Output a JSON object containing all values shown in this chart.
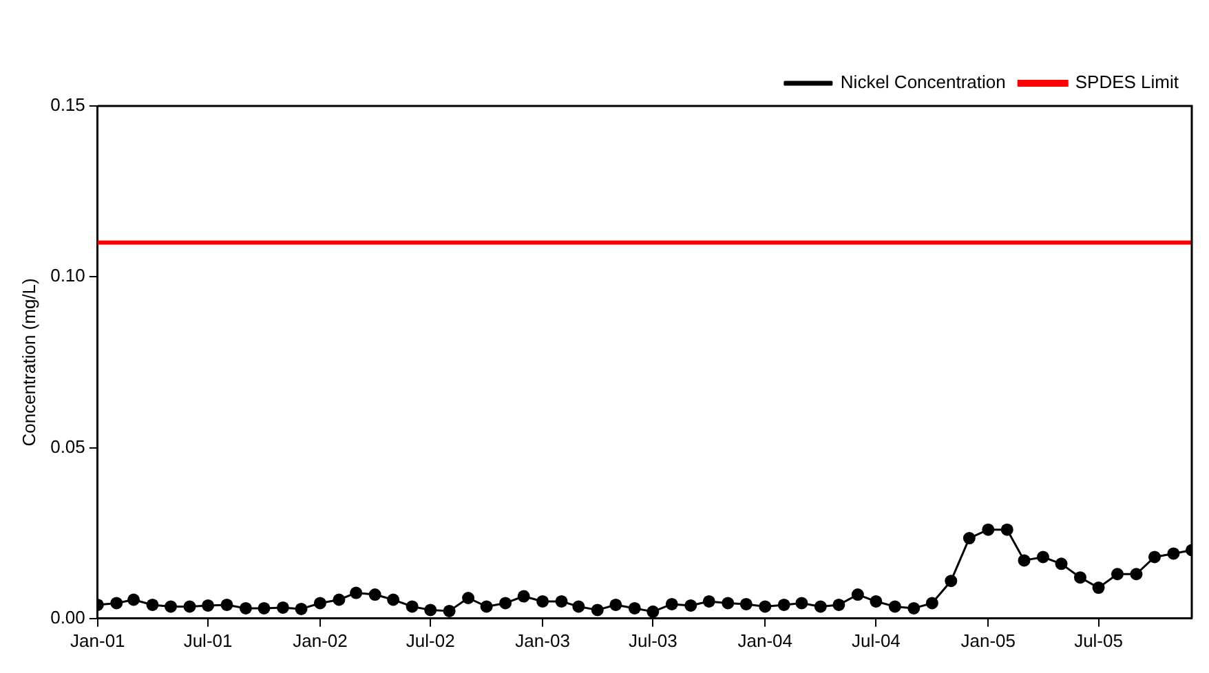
{
  "chart_data": {
    "type": "line",
    "ylabel": "Concentration (mg/L)",
    "x": [
      "2001-01",
      "2001-02",
      "2001-03",
      "2001-04",
      "2001-05",
      "2001-06",
      "2001-07",
      "2001-08",
      "2001-09",
      "2001-10",
      "2001-11",
      "2001-12",
      "2002-01",
      "2002-02",
      "2002-03",
      "2002-04",
      "2002-05",
      "2002-06",
      "2002-07",
      "2002-08",
      "2002-09",
      "2002-10",
      "2002-11",
      "2002-12",
      "2003-01",
      "2003-02",
      "2003-03",
      "2003-04",
      "2003-05",
      "2003-06",
      "2003-07",
      "2003-08",
      "2003-09",
      "2003-10",
      "2003-11",
      "2003-12",
      "2004-01",
      "2004-02",
      "2004-03",
      "2004-04",
      "2004-05",
      "2004-06",
      "2004-07",
      "2004-08",
      "2004-09",
      "2004-10",
      "2004-11",
      "2004-12",
      "2005-01",
      "2005-02",
      "2005-03",
      "2005-04",
      "2005-05",
      "2005-06",
      "2005-07",
      "2005-08",
      "2005-09",
      "2005-10",
      "2005-11",
      "2005-12"
    ],
    "series": [
      {
        "name": "Nickel Concentration",
        "color": "#000000",
        "values": [
          0.004,
          0.0045,
          0.0055,
          0.004,
          0.0035,
          0.0035,
          0.0038,
          0.004,
          0.003,
          0.003,
          0.0032,
          0.0028,
          0.0045,
          0.0055,
          0.0075,
          0.007,
          0.0055,
          0.0035,
          0.0025,
          0.0022,
          0.006,
          0.0035,
          0.0045,
          0.0065,
          0.005,
          0.005,
          0.0035,
          0.0025,
          0.004,
          0.003,
          0.002,
          0.0042,
          0.0038,
          0.005,
          0.0045,
          0.0042,
          0.0035,
          0.004,
          0.0045,
          0.0035,
          0.004,
          0.007,
          0.005,
          0.0035,
          0.003,
          0.0045,
          0.011,
          0.0235,
          0.026,
          0.026,
          0.017,
          0.018,
          0.016,
          0.012,
          0.009,
          0.013,
          0.013,
          0.018,
          0.019,
          0.02
        ]
      }
    ],
    "xlim": [
      "2001-01",
      "2005-12"
    ],
    "xticks": [
      {
        "value": "2001-01",
        "label": "Jan-01"
      },
      {
        "value": "2001-07",
        "label": "Jul-01"
      },
      {
        "value": "2002-01",
        "label": "Jan-02"
      },
      {
        "value": "2002-07",
        "label": "Jul-02"
      },
      {
        "value": "2003-01",
        "label": "Jan-03"
      },
      {
        "value": "2003-07",
        "label": "Jul-03"
      },
      {
        "value": "2004-01",
        "label": "Jan-04"
      },
      {
        "value": "2004-07",
        "label": "Jul-04"
      },
      {
        "value": "2005-01",
        "label": "Jan-05"
      },
      {
        "value": "2005-07",
        "label": "Jul-05"
      }
    ],
    "ylim": [
      0,
      0.15
    ],
    "yticks": [
      {
        "value": 0,
        "label": "0.00"
      },
      {
        "value": 0.05,
        "label": "0.05"
      },
      {
        "value": 0.1,
        "label": "0.10"
      },
      {
        "value": 0.15,
        "label": "0.15"
      }
    ],
    "ref_lines": [
      {
        "axis": "y",
        "value": 0.11,
        "label": "SPDES Limit",
        "color": "#ff0000"
      }
    ],
    "marker": "circle",
    "line_style": "solid",
    "grid": false,
    "legend": "top right"
  }
}
